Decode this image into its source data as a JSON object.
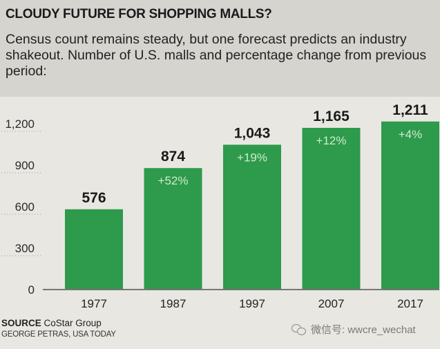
{
  "header": {
    "title": "CLOUDY FUTURE FOR SHOPPING MALLS?",
    "subtitle": "Census count remains steady, but one forecast predicts an industry shakeout. Number of U.S. malls and percentage change from previous period:"
  },
  "chart_data": {
    "type": "bar",
    "categories": [
      "1977",
      "1987",
      "1997",
      "2007",
      "2017"
    ],
    "values": [
      576,
      874,
      1043,
      1165,
      1211
    ],
    "value_labels": [
      "576",
      "874",
      "1,043",
      "1,165",
      "1,211"
    ],
    "change_labels": [
      "",
      "+52%",
      "+19%",
      "+12%",
      "+4%"
    ],
    "yticks": [
      0,
      300,
      600,
      900,
      1200
    ],
    "ytick_labels": [
      "0",
      "300",
      "600",
      "900",
      "1,200"
    ],
    "ylim": [
      0,
      1200
    ],
    "grid": false,
    "bar_color": "#2e9a4c"
  },
  "footer": {
    "source_label": "SOURCE",
    "source_value": "CoStar Group",
    "credit": "GEORGE PETRAS, USA TODAY",
    "watermark_text": "微信号: wwcre_wechat",
    "watermark_icon": "wechat-icon"
  }
}
